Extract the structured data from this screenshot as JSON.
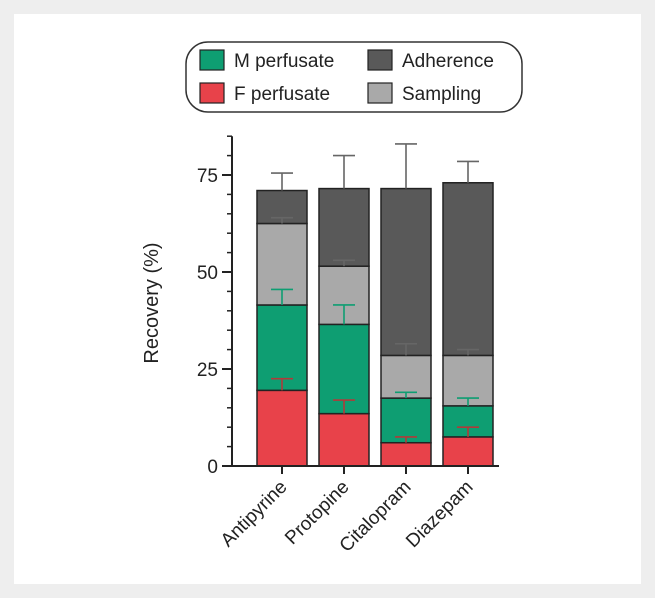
{
  "chart_data": {
    "type": "bar",
    "stacked": true,
    "categories": [
      "Antipyrine",
      "Protopine",
      "Citalopram",
      "Diazepam"
    ],
    "ylabel": "Recovery (%)",
    "xlabel": "",
    "ylim": [
      0,
      85
    ],
    "yticks": [
      0,
      25,
      50,
      75
    ],
    "grid": false,
    "legend_position": "top",
    "series": [
      {
        "name": "F perfusate",
        "color": "#e8424a",
        "values": [
          19.5,
          13.5,
          6,
          7.5
        ],
        "errors": [
          3,
          3.5,
          1.5,
          2.5
        ]
      },
      {
        "name": "M perfusate",
        "color": "#0e9e72",
        "values": [
          22,
          23,
          11.5,
          8
        ],
        "errors": [
          4,
          5,
          1.5,
          2
        ]
      },
      {
        "name": "Sampling",
        "color": "#a9a9a9",
        "values": [
          21,
          15,
          11,
          13
        ],
        "errors": [
          1.5,
          1.5,
          3,
          1.5
        ]
      },
      {
        "name": "Adherence",
        "color": "#595959",
        "values": [
          8.5,
          20,
          43,
          44.5
        ],
        "errors": [
          4.5,
          8.5,
          11.5,
          5.5
        ]
      }
    ]
  }
}
